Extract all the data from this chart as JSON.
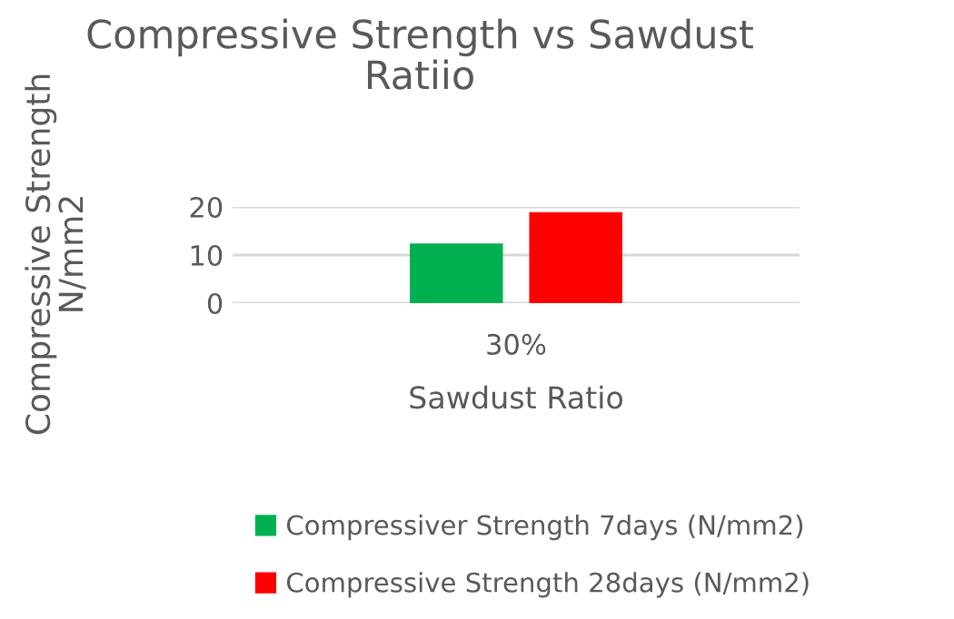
{
  "chart_data": {
    "type": "bar",
    "title": "Compressive Strength vs Sawdust\nRatiio",
    "xlabel": "Sawdust Ratio",
    "ylabel": "Compressive Strength\nN/mm2",
    "categories": [
      "30%"
    ],
    "series": [
      {
        "name": "Compressiver Strength 7days (N/mm2)",
        "color": "#00b050",
        "values": [
          12.4
        ]
      },
      {
        "name": "Compressive Strength 28days (N/mm2)",
        "color": "#ff0000",
        "values": [
          18.9
        ]
      }
    ],
    "ylim": [
      0,
      20
    ],
    "yticks": [
      0,
      10,
      20
    ],
    "grid": "y",
    "legend": "bottom"
  }
}
